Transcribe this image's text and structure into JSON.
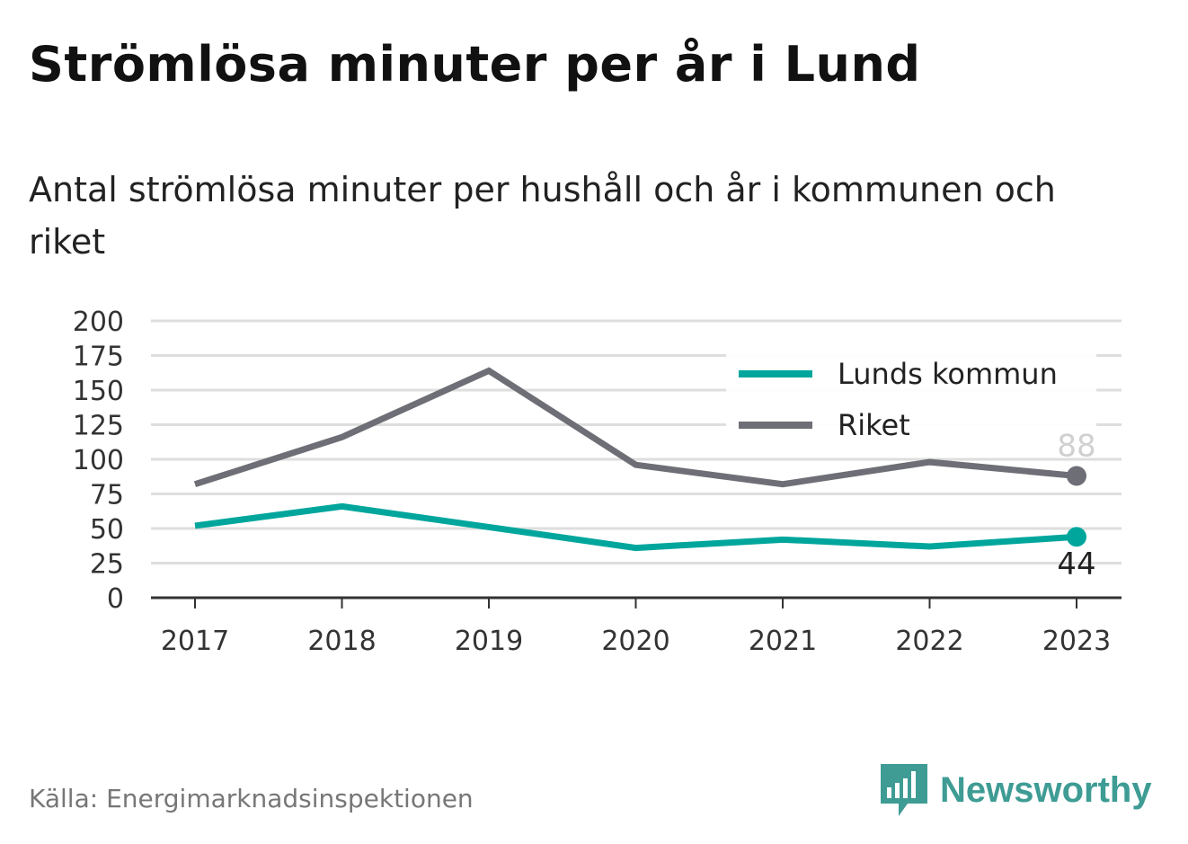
{
  "header": {
    "title": "Strömlösa minuter per år i Lund",
    "subtitle": "Antal strömlösa minuter per hushåll och år i kommunen och riket"
  },
  "footer": {
    "source": "Källa: Energimarknadsinspektionen",
    "brand": "Newsworthy",
    "brand_icon": "bar-chart-speech-bubble-icon",
    "brand_color": "#3e9c94"
  },
  "chart_data": {
    "type": "line",
    "x": [
      "2017",
      "2018",
      "2019",
      "2020",
      "2021",
      "2022",
      "2023"
    ],
    "ylim": [
      0,
      200
    ],
    "yticks": [
      0,
      25,
      50,
      75,
      100,
      125,
      150,
      175,
      200
    ],
    "grid": true,
    "legend_position": "top-right",
    "series": [
      {
        "name": "Lunds kommun",
        "color": "#00a69c",
        "values": [
          52,
          66,
          51,
          36,
          42,
          37,
          44
        ],
        "end_label": "44"
      },
      {
        "name": "Riket",
        "color": "#6e6e76",
        "values": [
          82,
          116,
          164,
          96,
          82,
          98,
          88
        ],
        "end_label": "88"
      }
    ]
  }
}
